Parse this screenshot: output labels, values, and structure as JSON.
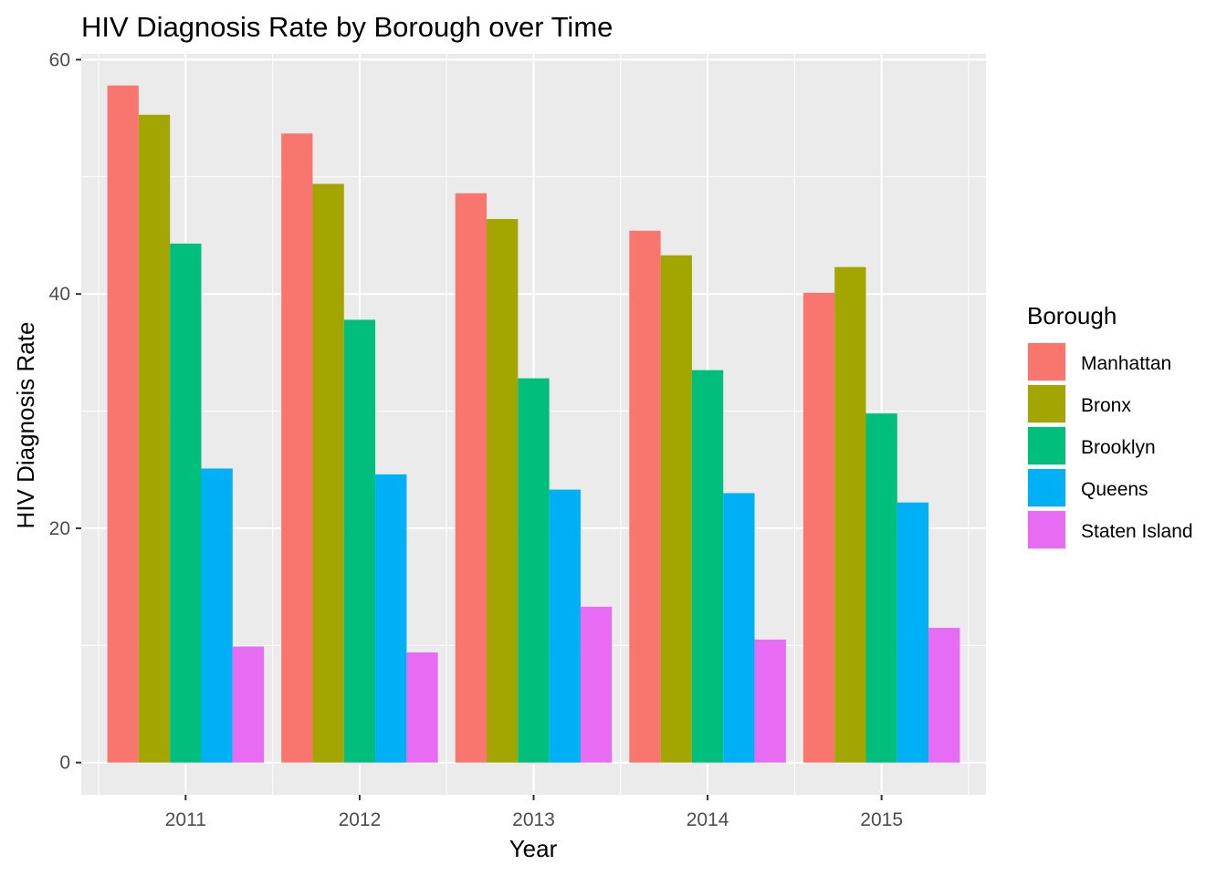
{
  "chart_data": {
    "type": "bar",
    "title": "HIV Diagnosis Rate by Borough over Time",
    "xlabel": "Year",
    "ylabel": "HIV Diagnosis Rate",
    "categories": [
      "2011",
      "2012",
      "2013",
      "2014",
      "2015"
    ],
    "ylim": [
      -2.75,
      60.5
    ],
    "yticks": [
      0,
      20,
      40,
      60
    ],
    "grid": true,
    "legend": {
      "title": "Borough",
      "position": "right"
    },
    "series": [
      {
        "name": "Manhattan",
        "color": "#F8766D",
        "values": [
          57.8,
          53.7,
          48.6,
          45.4,
          40.1
        ]
      },
      {
        "name": "Bronx",
        "color": "#A3A500",
        "values": [
          55.3,
          49.4,
          46.4,
          43.3,
          42.3
        ]
      },
      {
        "name": "Brooklyn",
        "color": "#00BF7D",
        "values": [
          44.3,
          37.8,
          32.8,
          33.5,
          29.8
        ]
      },
      {
        "name": "Queens",
        "color": "#00B0F6",
        "values": [
          25.1,
          24.6,
          23.3,
          23.0,
          22.2
        ]
      },
      {
        "name": "Staten Island",
        "color": "#E76BF3",
        "values": [
          9.9,
          9.4,
          13.3,
          10.5,
          11.5
        ]
      }
    ]
  }
}
